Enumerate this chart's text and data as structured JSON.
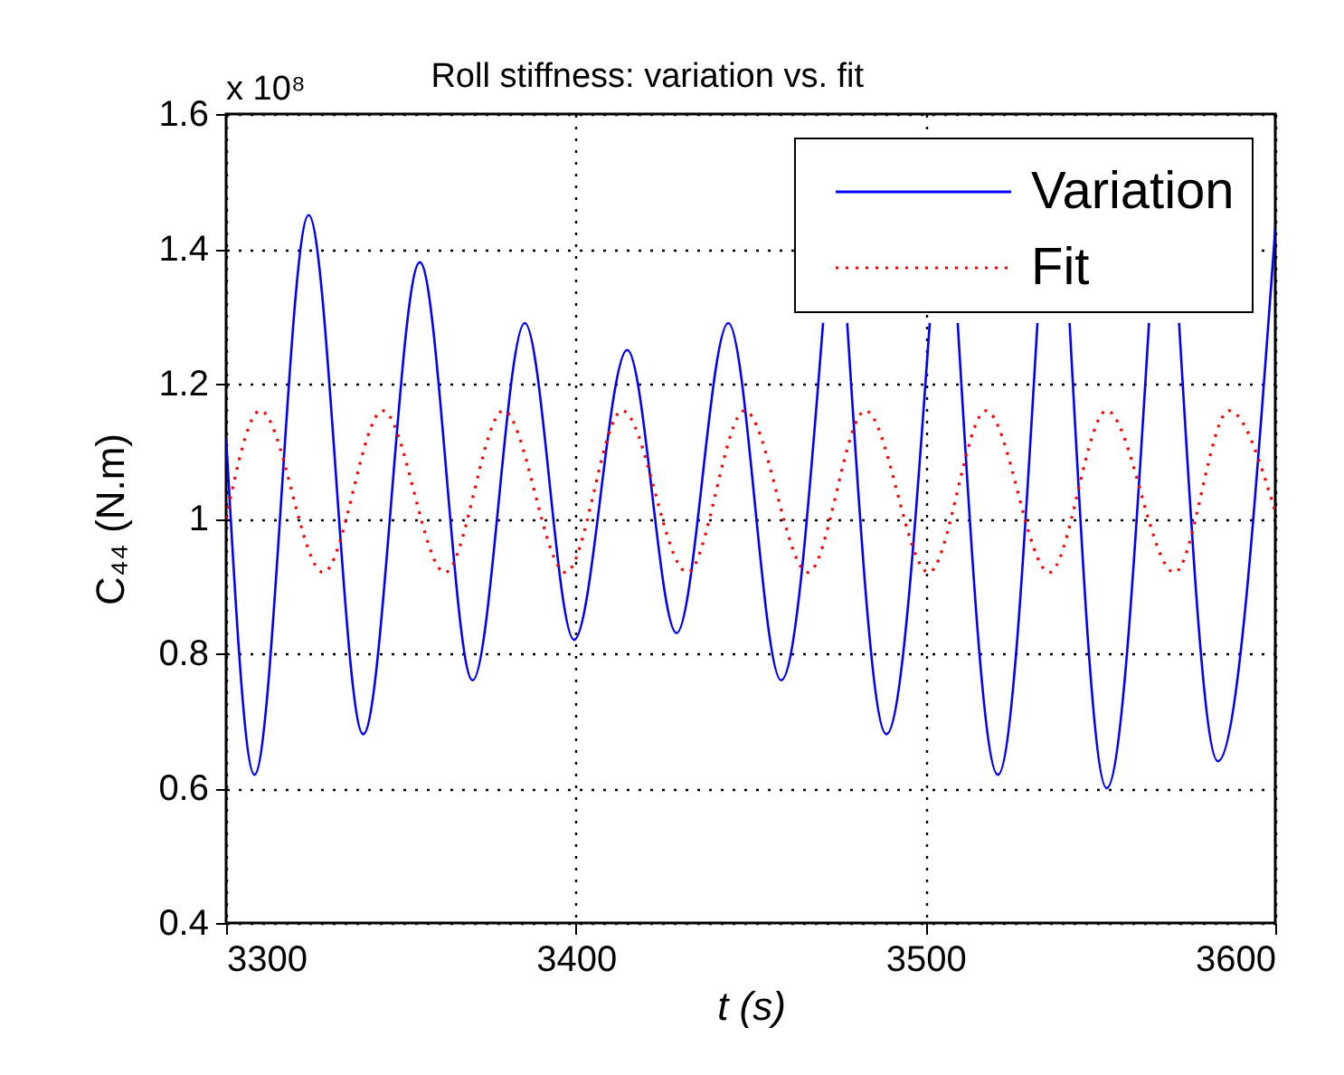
{
  "chart_data": {
    "type": "line",
    "title": "Roll stiffness: variation vs. fit",
    "xlabel": "t  (s)",
    "ylabel": "C₄₄  (N.m)",
    "annotations": [
      "x 10⁸"
    ],
    "xlim": [
      3300,
      3600
    ],
    "xticks": [
      {
        "value": 3300,
        "label": "3300"
      },
      {
        "value": 3400,
        "label": "3400"
      },
      {
        "value": 3500,
        "label": "3500"
      },
      {
        "value": 3600,
        "label": "3600"
      }
    ],
    "ylim": [
      0.4,
      1.6
    ],
    "yticks": [
      0.4,
      0.6,
      0.8,
      1,
      1.2,
      1.4,
      1.6
    ],
    "grid": true,
    "legend": "top right",
    "marker": "none",
    "series": [
      {
        "name": "Variation",
        "color": "#0000ff",
        "line_style": "solid",
        "x": [
          3300,
          3308.1,
          3323.6,
          3339.2,
          3355.4,
          3370.5,
          3385.4,
          3399.5,
          3414.7,
          3428.8,
          3443.6,
          3458.7,
          3470.7,
          3474,
          3477.6,
          3488.8,
          3501.2,
          3505,
          3509.2,
          3520.7,
          3532,
          3536.5,
          3541.2,
          3551.8,
          3563.9,
          3568,
          3572.5,
          3583.6,
          3600
        ],
        "values": [
          1.12,
          0.62,
          1.45,
          0.68,
          1.38,
          0.76,
          1.29,
          0.82,
          1.25,
          0.83,
          1.29,
          0.76,
          1.29,
          null,
          1.29,
          0.68,
          1.29,
          null,
          1.29,
          0.62,
          1.29,
          null,
          1.29,
          0.6,
          1.29,
          null,
          1.29,
          0.64,
          1.43
        ]
      },
      {
        "name": "Fit",
        "color": "#ff0000",
        "line_style": "dotted",
        "x": [
          3300,
          3309.8,
          3327.8,
          3344.8,
          3362.6,
          3379.3,
          3397.1,
          3413.3,
          3431.9,
          3448.3,
          3466.4,
          3482.8,
          3500.9,
          3517.3,
          3535.4,
          3551.8,
          3571.2,
          3586.8,
          3600
        ],
        "values": [
          1.0,
          1.16,
          0.92,
          1.16,
          0.92,
          1.16,
          0.92,
          1.16,
          0.92,
          1.16,
          0.92,
          1.16,
          0.92,
          1.16,
          0.92,
          1.16,
          0.92,
          1.16,
          1.01
        ]
      }
    ]
  }
}
